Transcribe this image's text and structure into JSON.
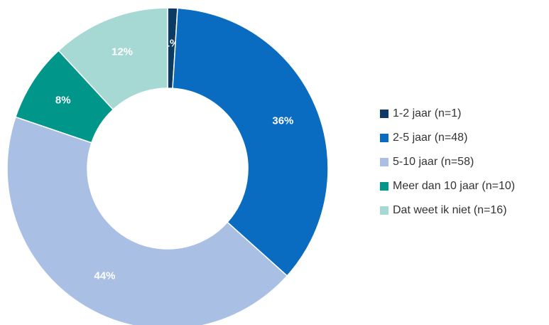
{
  "chart_data": {
    "type": "donut",
    "categories": [
      "1-2 jaar (n=1)",
      "2-5 jaar (n=48)",
      "5-10 jaar (n=58)",
      "Meer dan 10 jaar (n=10)",
      "Dat weet ik niet (n=16)"
    ],
    "values": [
      1,
      36,
      44,
      8,
      12
    ],
    "value_labels": [
      "1%",
      "36%",
      "44%",
      "8%",
      "12%"
    ],
    "colors": [
      "#0b3a63",
      "#0a6cc0",
      "#a9bfe3",
      "#00968a",
      "#a6d8d4"
    ],
    "legend": "right"
  }
}
